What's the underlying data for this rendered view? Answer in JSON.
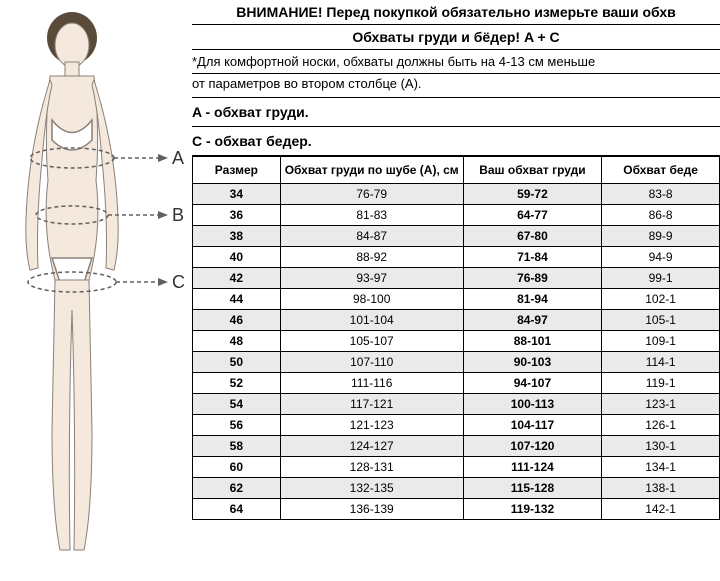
{
  "titles": {
    "main": "ВНИМАНИЕ! Перед покупкой обязательно измерьте ваши обхв",
    "sub": "Обхваты груди и бёдер! A + C"
  },
  "note": {
    "line1": "*Для комфортной носки, обхваты должны быть на 4-13 см меньше",
    "line2": "от параметров во втором столбце (А)."
  },
  "labels": {
    "a": "A - обхват груди.",
    "c": "C - обхват бедер."
  },
  "table": {
    "headers": {
      "size": "Размер",
      "a": "Обхват груди по шубе (A), см",
      "bust": "Ваш обхват груди",
      "hips": "Обхват беде"
    },
    "rows": [
      {
        "size": "34",
        "a": "76-79",
        "bust": "59-72",
        "hips": "83-8"
      },
      {
        "size": "36",
        "a": "81-83",
        "bust": "64-77",
        "hips": "86-8"
      },
      {
        "size": "38",
        "a": "84-87",
        "bust": "67-80",
        "hips": "89-9"
      },
      {
        "size": "40",
        "a": "88-92",
        "bust": "71-84",
        "hips": "94-9"
      },
      {
        "size": "42",
        "a": "93-97",
        "bust": "76-89",
        "hips": "99-1"
      },
      {
        "size": "44",
        "a": "98-100",
        "bust": "81-94",
        "hips": "102-1"
      },
      {
        "size": "46",
        "a": "101-104",
        "bust": "84-97",
        "hips": "105-1"
      },
      {
        "size": "48",
        "a": "105-107",
        "bust": "88-101",
        "hips": "109-1"
      },
      {
        "size": "50",
        "a": "107-110",
        "bust": "90-103",
        "hips": "114-1"
      },
      {
        "size": "52",
        "a": "111-116",
        "bust": "94-107",
        "hips": "119-1"
      },
      {
        "size": "54",
        "a": "117-121",
        "bust": "100-113",
        "hips": "123-1"
      },
      {
        "size": "56",
        "a": "121-123",
        "bust": "104-117",
        "hips": "126-1"
      },
      {
        "size": "58",
        "a": "124-127",
        "bust": "107-120",
        "hips": "130-1"
      },
      {
        "size": "60",
        "a": "128-131",
        "bust": "111-124",
        "hips": "134-1"
      },
      {
        "size": "62",
        "a": "132-135",
        "bust": "115-128",
        "hips": "138-1"
      },
      {
        "size": "64",
        "a": "136-139",
        "bust": "119-132",
        "hips": "142-1"
      }
    ]
  },
  "figure": {
    "markers": {
      "a": "A",
      "b": "B",
      "c": "C"
    },
    "colors": {
      "skin": "#f5e8dc",
      "underwear": "#ffffff",
      "hair": "#5a4a3a",
      "outline": "#8a8078",
      "dashline": "#606060"
    }
  }
}
